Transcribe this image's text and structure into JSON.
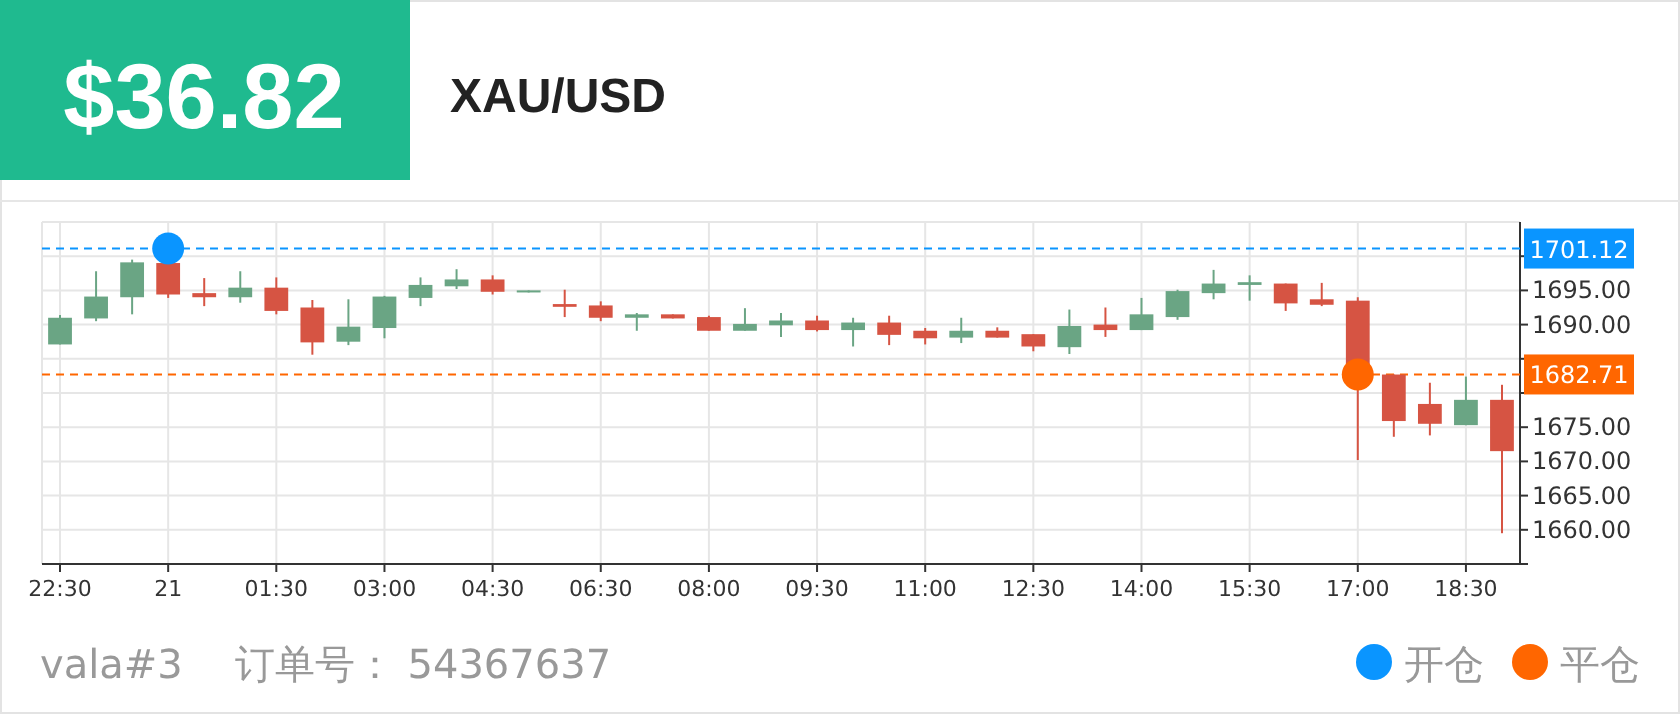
{
  "chart_data": {
    "type": "candlestick",
    "title": "$36.82",
    "subtitle": "XAU/USD",
    "categories": [
      "22:30",
      null,
      null,
      "21",
      null,
      null,
      "01:30",
      null,
      null,
      "03:00",
      null,
      null,
      "04:30",
      null,
      null,
      "06:30",
      null,
      null,
      "08:00",
      null,
      null,
      "09:30",
      null,
      null,
      "11:00",
      null,
      null,
      "12:30",
      null,
      null,
      "14:00",
      null,
      null,
      "15:30",
      null,
      null,
      "17:00",
      null,
      null,
      "18:30",
      null
    ],
    "ohlc": [
      [
        1687.1,
        1691.4,
        1687.1,
        1691.0
      ],
      [
        1690.9,
        1697.8,
        1690.5,
        1694.1
      ],
      [
        1694.0,
        1699.5,
        1691.5,
        1699.1
      ],
      [
        1699.0,
        1699.1,
        1693.9,
        1694.4
      ],
      [
        1694.6,
        1696.8,
        1692.7,
        1694.0
      ],
      [
        1694.0,
        1697.8,
        1693.2,
        1695.4
      ],
      [
        1695.4,
        1696.9,
        1691.5,
        1692.0
      ],
      [
        1692.5,
        1693.6,
        1685.6,
        1687.4
      ],
      [
        1687.5,
        1693.7,
        1687.0,
        1689.7
      ],
      [
        1689.5,
        1694.2,
        1688.0,
        1694.1
      ],
      [
        1693.9,
        1696.9,
        1692.7,
        1695.8
      ],
      [
        1695.6,
        1698.1,
        1695.2,
        1696.6
      ],
      [
        1696.6,
        1697.2,
        1694.4,
        1694.8
      ],
      [
        1694.7,
        1695.0,
        1694.7,
        1695.0
      ],
      [
        1693.0,
        1695.1,
        1691.1,
        1692.6
      ],
      [
        1692.8,
        1693.4,
        1690.5,
        1691.0
      ],
      [
        1691.0,
        1691.7,
        1689.1,
        1691.5
      ],
      [
        1691.5,
        1691.5,
        1690.9,
        1690.9
      ],
      [
        1691.1,
        1691.3,
        1689.1,
        1689.1
      ],
      [
        1689.1,
        1692.4,
        1689.1,
        1690.1
      ],
      [
        1689.9,
        1691.7,
        1688.2,
        1690.6
      ],
      [
        1690.6,
        1691.3,
        1689.0,
        1689.2
      ],
      [
        1689.2,
        1691.0,
        1686.8,
        1690.3
      ],
      [
        1690.3,
        1691.3,
        1687.0,
        1688.5
      ],
      [
        1689.1,
        1689.5,
        1687.1,
        1688.0
      ],
      [
        1688.1,
        1691.0,
        1687.3,
        1689.1
      ],
      [
        1689.1,
        1689.6,
        1688.1,
        1688.1
      ],
      [
        1688.6,
        1688.6,
        1686.1,
        1686.8
      ],
      [
        1686.7,
        1692.2,
        1685.7,
        1689.8
      ],
      [
        1690.0,
        1692.5,
        1688.2,
        1689.2
      ],
      [
        1689.2,
        1693.9,
        1689.2,
        1691.5
      ],
      [
        1691.1,
        1695.1,
        1690.7,
        1694.9
      ],
      [
        1694.6,
        1698.0,
        1693.7,
        1696.0
      ],
      [
        1695.8,
        1697.2,
        1693.5,
        1696.2
      ],
      [
        1696.0,
        1696.0,
        1692.0,
        1693.1
      ],
      [
        1693.7,
        1696.1,
        1692.7,
        1692.9
      ],
      [
        1693.5,
        1694.0,
        1670.2,
        1682.7
      ],
      [
        1682.7,
        1682.7,
        1673.6,
        1675.9
      ],
      [
        1678.4,
        1681.5,
        1673.8,
        1675.5
      ],
      [
        1675.3,
        1682.4,
        1675.3,
        1679.0
      ],
      [
        1679.0,
        1681.2,
        1659.5,
        1671.5
      ]
    ],
    "series": [
      {
        "type": "scatter",
        "name": "开仓",
        "color": "#0a95ff",
        "x": [
          "21"
        ],
        "values": [
          1701.12
        ]
      },
      {
        "type": "scatter",
        "name": "平仓",
        "color": "#ff6600",
        "x": [
          "17:00"
        ],
        "values": [
          1682.71
        ]
      }
    ],
    "ylim": [
      1655,
      1705
    ],
    "yticks": [
      {
        "value": 1655,
        "label": null
      },
      {
        "value": 1660,
        "label": "1660.00"
      },
      {
        "value": 1665,
        "label": "1665.00"
      },
      {
        "value": 1670,
        "label": "1670.00"
      },
      {
        "value": 1675,
        "label": "1675.00"
      },
      {
        "value": 1680,
        "label": null
      },
      {
        "value": 1685,
        "label": null
      },
      {
        "value": 1690,
        "label": "1690.00"
      },
      {
        "value": 1695,
        "label": "1695.00"
      },
      {
        "value": 1700,
        "label": null
      }
    ],
    "ref_lines": [
      {
        "axis": "y",
        "value": 1701.12,
        "label": "1701.12",
        "color": "#0a95ff",
        "line_style": "dashed"
      },
      {
        "axis": "y",
        "value": 1682.71,
        "label": "1682.71",
        "color": "#ff6600",
        "line_style": "dashed"
      }
    ],
    "annotations": [
      "vala#3",
      "订单号： 54367637"
    ],
    "grid": true,
    "legend": "bottom right",
    "marker": "circle"
  }
}
